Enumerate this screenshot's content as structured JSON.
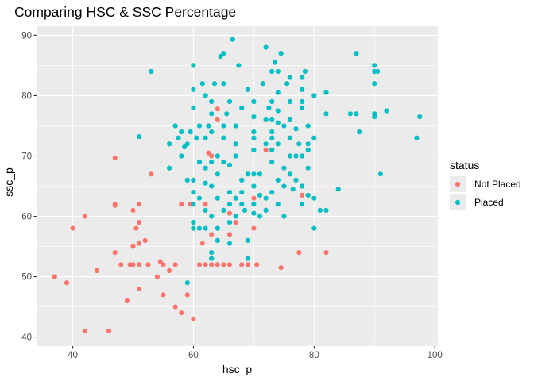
{
  "chart_data": {
    "type": "scatter",
    "title": "Comparing HSC & SSC Percentage",
    "xlabel": "hsc_p",
    "ylabel": "ssc_p",
    "xlim": [
      34,
      100.5
    ],
    "ylim": [
      38.5,
      91.5
    ],
    "xticks": [
      40,
      60,
      80,
      100
    ],
    "yticks": [
      40,
      50,
      60,
      70,
      80,
      90
    ],
    "grid": true,
    "legend": {
      "title": "status",
      "placement": "right"
    },
    "series": [
      {
        "name": "Not Placed",
        "color": "#F8766D",
        "points": [
          [
            37,
            50
          ],
          [
            39,
            49
          ],
          [
            40,
            58
          ],
          [
            42,
            60
          ],
          [
            42,
            41
          ],
          [
            44,
            51
          ],
          [
            46,
            41
          ],
          [
            47,
            69.7
          ],
          [
            47,
            62
          ],
          [
            47,
            61.8
          ],
          [
            47,
            54
          ],
          [
            48,
            52
          ],
          [
            49,
            46
          ],
          [
            49.5,
            52
          ],
          [
            50,
            61
          ],
          [
            50,
            55
          ],
          [
            50,
            52
          ],
          [
            50.5,
            58
          ],
          [
            51,
            62
          ],
          [
            51,
            59
          ],
          [
            51,
            55.5
          ],
          [
            51,
            52
          ],
          [
            51,
            48
          ],
          [
            52,
            56
          ],
          [
            52.5,
            52
          ],
          [
            53,
            67
          ],
          [
            54,
            50
          ],
          [
            54.5,
            52.5
          ],
          [
            55,
            52
          ],
          [
            55,
            47
          ],
          [
            56,
            51
          ],
          [
            57,
            45
          ],
          [
            57,
            52
          ],
          [
            58,
            62
          ],
          [
            58,
            44
          ],
          [
            59,
            47
          ],
          [
            59.5,
            62
          ],
          [
            60,
            43
          ],
          [
            61,
            52
          ],
          [
            61.5,
            55.5
          ],
          [
            62,
            62
          ],
          [
            62,
            52
          ],
          [
            62.5,
            70.5
          ],
          [
            63,
            70
          ],
          [
            63,
            57
          ],
          [
            63,
            52
          ],
          [
            64,
            52
          ],
          [
            64,
            76
          ],
          [
            64,
            77.8
          ],
          [
            65,
            52
          ],
          [
            66,
            60.5
          ],
          [
            66,
            57
          ],
          [
            66,
            52
          ],
          [
            67,
            63
          ],
          [
            67,
            59
          ],
          [
            68,
            52
          ],
          [
            69,
            52
          ],
          [
            70,
            63
          ],
          [
            70,
            58
          ],
          [
            70.5,
            52
          ],
          [
            72,
            71
          ],
          [
            74.5,
            51.5
          ],
          [
            77.5,
            54
          ],
          [
            78,
            63.5
          ],
          [
            82,
            54
          ]
        ]
      },
      {
        "name": "Placed",
        "color": "#00BFC4",
        "points": [
          [
            51,
            73.2
          ],
          [
            53,
            84
          ],
          [
            56,
            68
          ],
          [
            56,
            72
          ],
          [
            57,
            75
          ],
          [
            57.5,
            73
          ],
          [
            58,
            74
          ],
          [
            58,
            70
          ],
          [
            58.5,
            71.5
          ],
          [
            59,
            72
          ],
          [
            59,
            66
          ],
          [
            59,
            49
          ],
          [
            59.5,
            74
          ],
          [
            60,
            85
          ],
          [
            60,
            81
          ],
          [
            60,
            78
          ],
          [
            60,
            66
          ],
          [
            60,
            64
          ],
          [
            60,
            62
          ],
          [
            60,
            59
          ],
          [
            60,
            58
          ],
          [
            60.5,
            73
          ],
          [
            61,
            75
          ],
          [
            61,
            69
          ],
          [
            61,
            63
          ],
          [
            61,
            58
          ],
          [
            61.5,
            82
          ],
          [
            62,
            80
          ],
          [
            62,
            73
          ],
          [
            62,
            68
          ],
          [
            62,
            65.5
          ],
          [
            62,
            61
          ],
          [
            62,
            58
          ],
          [
            62.5,
            75
          ],
          [
            63,
            79
          ],
          [
            63,
            77
          ],
          [
            63,
            74
          ],
          [
            63,
            69
          ],
          [
            63,
            65
          ],
          [
            63,
            60
          ],
          [
            63,
            54
          ],
          [
            63,
            53
          ],
          [
            63.5,
            82
          ],
          [
            64,
            70
          ],
          [
            64,
            67
          ],
          [
            64,
            63
          ],
          [
            64,
            58
          ],
          [
            64,
            56
          ],
          [
            64.5,
            86.5
          ],
          [
            65,
            87
          ],
          [
            65,
            82
          ],
          [
            65,
            75
          ],
          [
            65,
            73
          ],
          [
            65,
            69
          ],
          [
            65,
            61
          ],
          [
            65.5,
            77
          ],
          [
            66,
            79
          ],
          [
            66,
            68.5
          ],
          [
            66,
            64
          ],
          [
            66,
            62
          ],
          [
            66,
            59
          ],
          [
            66,
            55.5
          ],
          [
            66.5,
            89.3
          ],
          [
            67,
            75
          ],
          [
            67,
            72
          ],
          [
            67,
            70
          ],
          [
            67,
            63
          ],
          [
            67,
            60
          ],
          [
            67.5,
            85
          ],
          [
            68,
            78
          ],
          [
            68,
            66
          ],
          [
            68,
            64
          ],
          [
            68,
            62
          ],
          [
            68.5,
            61
          ],
          [
            69,
            81
          ],
          [
            69,
            67
          ],
          [
            69,
            56
          ],
          [
            69,
            53
          ],
          [
            70,
            79
          ],
          [
            70,
            76.5
          ],
          [
            70,
            74
          ],
          [
            70,
            73
          ],
          [
            70,
            71
          ],
          [
            70,
            67
          ],
          [
            70,
            65
          ],
          [
            70,
            62
          ],
          [
            70,
            60.5
          ],
          [
            71,
            67
          ],
          [
            71,
            63.5
          ],
          [
            71,
            60
          ],
          [
            71.5,
            82
          ],
          [
            72,
            88
          ],
          [
            72,
            76
          ],
          [
            72,
            72
          ],
          [
            72,
            63
          ],
          [
            72,
            61
          ],
          [
            72.5,
            78
          ],
          [
            73,
            84
          ],
          [
            73,
            79
          ],
          [
            73,
            76
          ],
          [
            73,
            74
          ],
          [
            73,
            73
          ],
          [
            73,
            71
          ],
          [
            73,
            69
          ],
          [
            73,
            64
          ],
          [
            73.5,
            85.5
          ],
          [
            74,
            84
          ],
          [
            74,
            80.5
          ],
          [
            74,
            77.5
          ],
          [
            74,
            75.5
          ],
          [
            74,
            72
          ],
          [
            74,
            66
          ],
          [
            74,
            62
          ],
          [
            74.5,
            87
          ],
          [
            75,
            75
          ],
          [
            75,
            68
          ],
          [
            75,
            65
          ],
          [
            75,
            60
          ],
          [
            75.5,
            82
          ],
          [
            76,
            83
          ],
          [
            76,
            79
          ],
          [
            76,
            76
          ],
          [
            76,
            73
          ],
          [
            76,
            70
          ],
          [
            76,
            67
          ],
          [
            76.5,
            64.5
          ],
          [
            77,
            74.5
          ],
          [
            77,
            70
          ],
          [
            77,
            66
          ],
          [
            77.5,
            72
          ],
          [
            78,
            83
          ],
          [
            78,
            81
          ],
          [
            78,
            79
          ],
          [
            78,
            78
          ],
          [
            78,
            70
          ],
          [
            78,
            65
          ],
          [
            78,
            62
          ],
          [
            78.5,
            84
          ],
          [
            79,
            75
          ],
          [
            79,
            72
          ],
          [
            79,
            71
          ],
          [
            79,
            68
          ],
          [
            79,
            63.5
          ],
          [
            80,
            80
          ],
          [
            80,
            73
          ],
          [
            80,
            63
          ],
          [
            80,
            58
          ],
          [
            81,
            61
          ],
          [
            82,
            80.5
          ],
          [
            82,
            77
          ],
          [
            82,
            61
          ],
          [
            84,
            64.5
          ],
          [
            86,
            77
          ],
          [
            87,
            87
          ],
          [
            87,
            77
          ],
          [
            87.5,
            74
          ],
          [
            90,
            85
          ],
          [
            90,
            84
          ],
          [
            90,
            82
          ],
          [
            90,
            77
          ],
          [
            90,
            76.5
          ],
          [
            90.5,
            84
          ],
          [
            91,
            67
          ],
          [
            92,
            77.5
          ],
          [
            97,
            73
          ],
          [
            97.5,
            76.5
          ]
        ]
      }
    ]
  }
}
